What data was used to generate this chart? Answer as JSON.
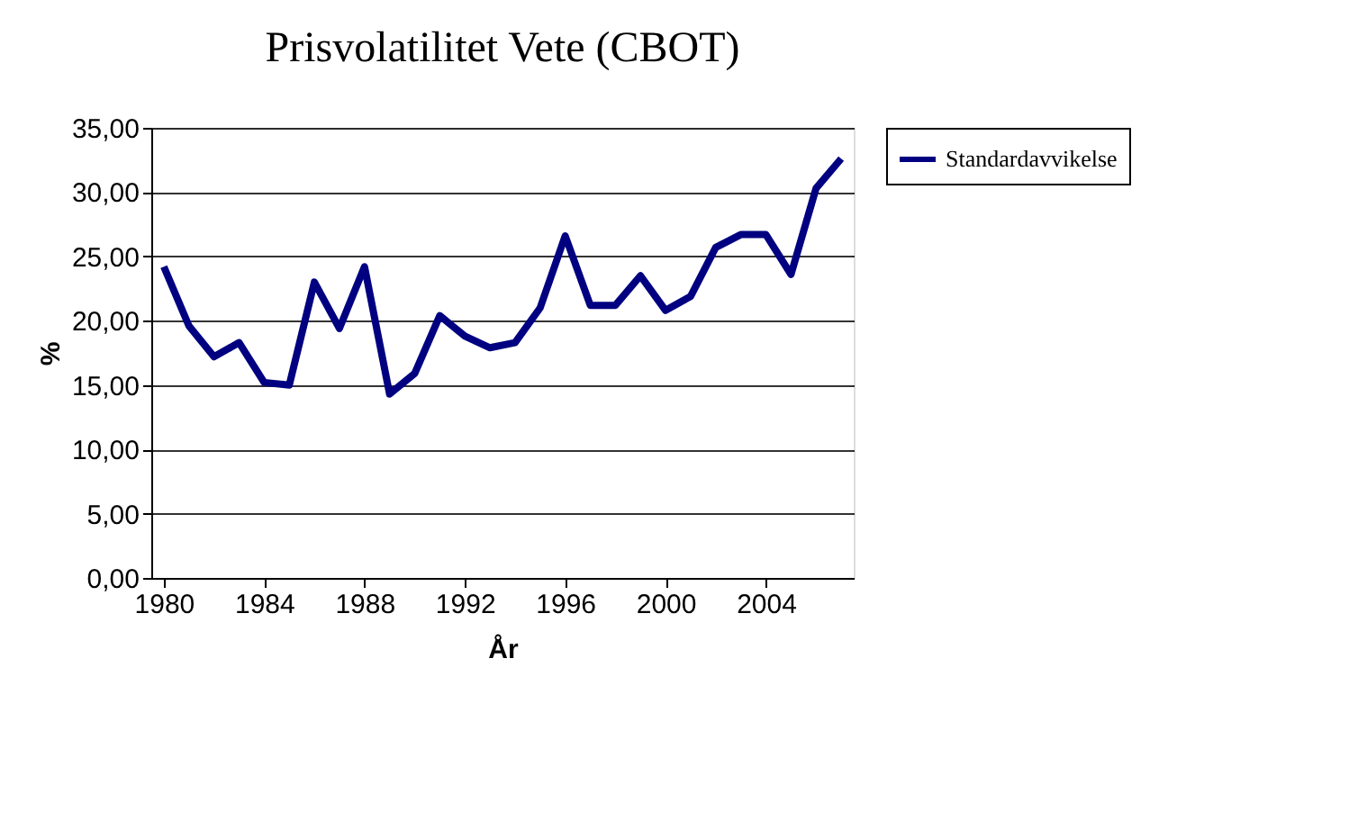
{
  "chart_data": {
    "type": "line",
    "title": "Prisvolatilitet Vete (CBOT)",
    "xlabel": "År",
    "ylabel": "%",
    "x": [
      1980,
      1981,
      1982,
      1983,
      1984,
      1985,
      1986,
      1987,
      1988,
      1989,
      1990,
      1991,
      1992,
      1993,
      1994,
      1995,
      1996,
      1997,
      1998,
      1999,
      2000,
      2001,
      2002,
      2003,
      2004,
      2005,
      2006,
      2007
    ],
    "series": [
      {
        "name": "Standardavvikelse",
        "color": "#000080",
        "values": [
          24.2,
          19.6,
          17.2,
          18.3,
          15.2,
          15.0,
          23.0,
          19.4,
          24.2,
          14.3,
          15.9,
          20.4,
          18.8,
          17.9,
          18.3,
          21.0,
          26.6,
          21.2,
          21.2,
          23.5,
          20.8,
          21.9,
          25.7,
          26.7,
          26.7,
          23.6,
          30.3,
          32.6
        ]
      }
    ],
    "xlim": [
      1979.5,
      2007.5
    ],
    "xticks": [
      1980,
      1984,
      1988,
      1992,
      1996,
      2000,
      2004
    ],
    "ylim": [
      0,
      35
    ],
    "yticks": [
      {
        "value": 0,
        "label": "0,00"
      },
      {
        "value": 5,
        "label": "5,00"
      },
      {
        "value": 10,
        "label": "10,00"
      },
      {
        "value": 15,
        "label": "15,00"
      },
      {
        "value": 20,
        "label": "20,00"
      },
      {
        "value": 25,
        "label": "25,00"
      },
      {
        "value": 30,
        "label": "30,00"
      },
      {
        "value": 35,
        "label": "35,00"
      }
    ],
    "grid": "y",
    "legend": "right",
    "marker": "none",
    "line_style": "solid"
  }
}
